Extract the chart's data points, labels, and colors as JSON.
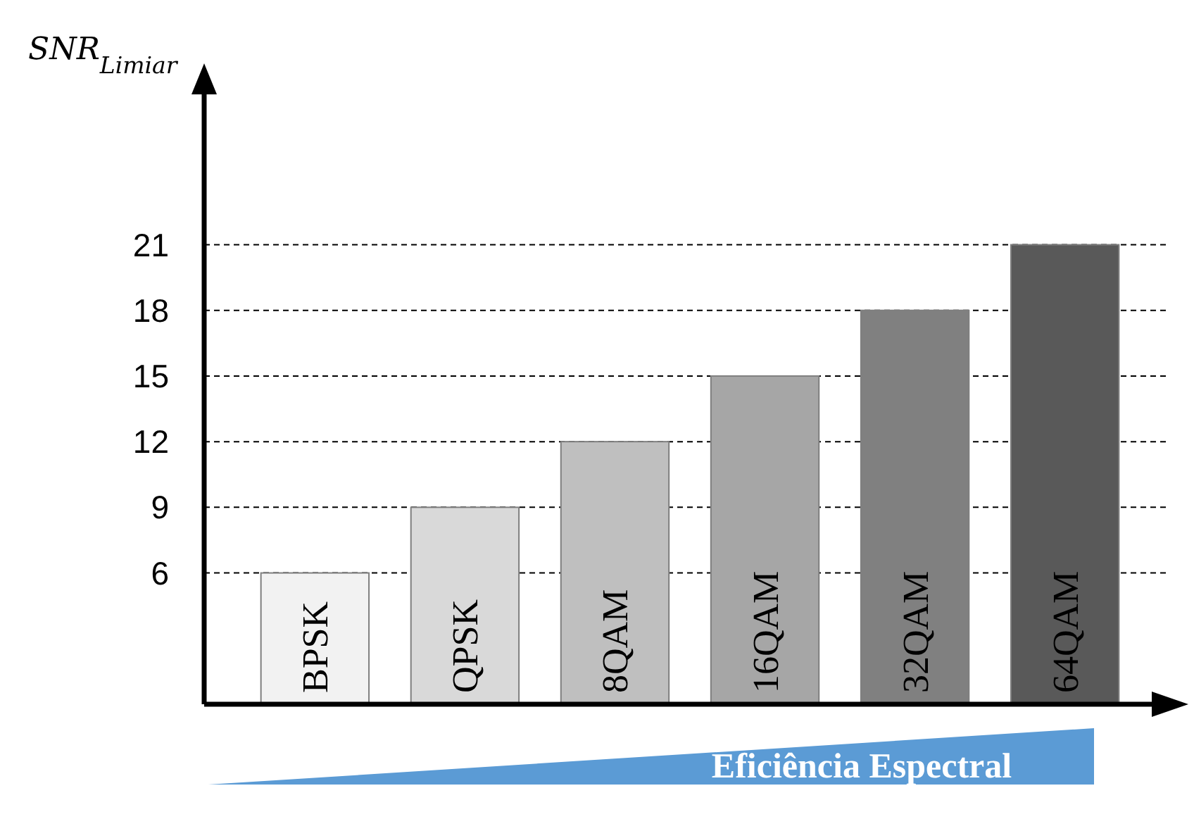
{
  "chart_data": {
    "type": "bar",
    "ylabel": "SNR$_{Limiar}$",
    "xlabel": "Eficiência Espectral",
    "categories": [
      "BPSK",
      "QPSK",
      "8QAM",
      "16QAM",
      "32QAM",
      "64QAM"
    ],
    "values": [
      6,
      9,
      12,
      15,
      18,
      21
    ],
    "colors": [
      "#f2f2f2",
      "#d9d9d9",
      "#bfbfbf",
      "#a6a6a6",
      "#808080",
      "#595959"
    ],
    "ylim": [
      0,
      28
    ],
    "yticks": [
      6,
      9,
      12,
      15,
      18,
      21
    ],
    "grid": "y"
  }
}
